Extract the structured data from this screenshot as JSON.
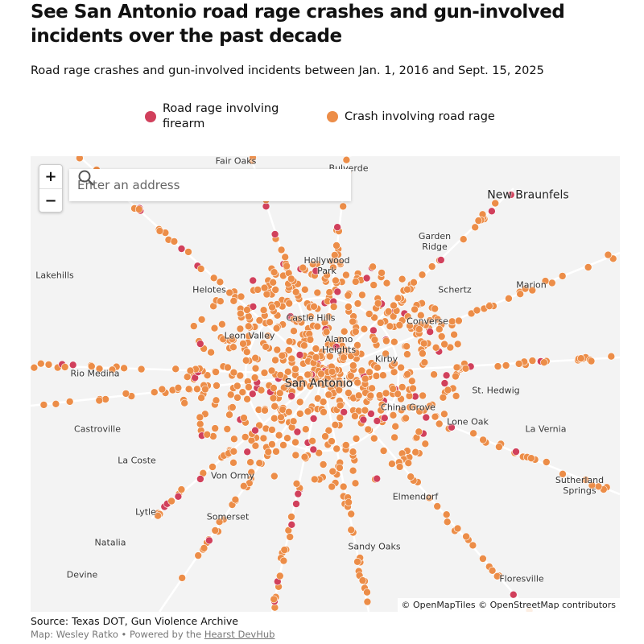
{
  "header": {
    "title": "See San Antonio road rage crashes and gun-involved incidents over the past decade",
    "subtitle": "Road rage crashes and gun-involved incidents between Jan. 1, 2016 and Sept. 15, 2025"
  },
  "legend": [
    {
      "label": "Road rage involving firearm",
      "color": "#d1405c"
    },
    {
      "label": "Crash involving road rage",
      "color": "#ec8d48"
    }
  ],
  "map": {
    "search_placeholder": "Enter an address",
    "zoom_in": "+",
    "zoom_out": "−",
    "attribution": "© OpenMapTiles © OpenStreetMap contributors",
    "places": [
      "Fair Oaks",
      "Bulverde",
      "New Braunfels",
      "Garden Ridge",
      "Hollywood Park",
      "Lakehills",
      "Helotes",
      "Schertz",
      "Marion",
      "Castle Hills",
      "Converse",
      "Leon Valley",
      "Alamo Heights",
      "Kirby",
      "Rio Medina",
      "San Antonio",
      "St. Hedwig",
      "China Grove",
      "Castroville",
      "Lone Oak",
      "La Vernia",
      "La Coste",
      "Von Ormy",
      "Sutherland Springs",
      "Elmendorf",
      "Lytle",
      "Somerset",
      "Natalia",
      "Sandy Oaks",
      "Devine",
      "Floresville"
    ]
  },
  "footer": {
    "source": "Source: Texas DOT, Gun Violence Archive",
    "credit_prefix": "Map: Wesley Ratko • Powered by the ",
    "credit_link": "Hearst DevHub"
  }
}
